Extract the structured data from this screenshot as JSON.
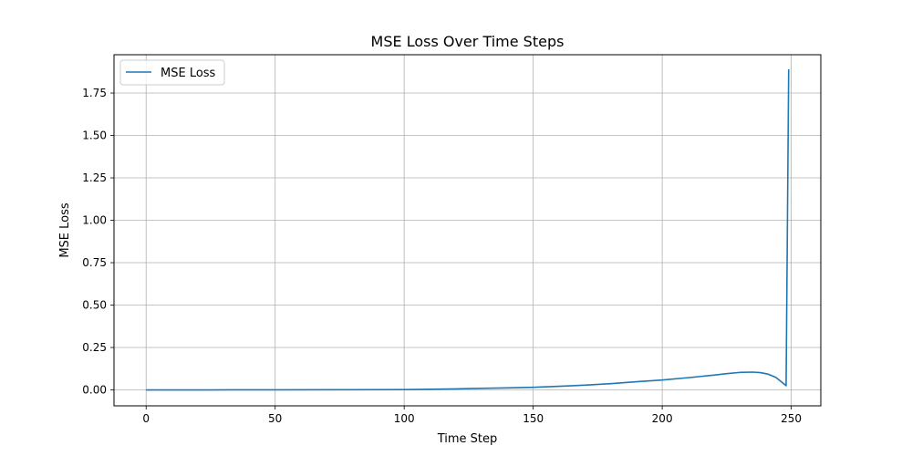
{
  "chart_data": {
    "type": "line",
    "title": "MSE Loss Over Time Steps",
    "xlabel": "Time Step",
    "ylabel": "MSE Loss",
    "xlim": [
      -12.45,
      261.45
    ],
    "ylim": [
      -0.094,
      1.976
    ],
    "xticks": [
      0,
      50,
      100,
      150,
      200,
      250
    ],
    "xtick_labels": [
      "0",
      "50",
      "100",
      "150",
      "200",
      "250"
    ],
    "yticks": [
      0.0,
      0.25,
      0.5,
      0.75,
      1.0,
      1.25,
      1.5,
      1.75
    ],
    "ytick_labels": [
      "0.00",
      "0.25",
      "0.50",
      "0.75",
      "1.00",
      "1.25",
      "1.50",
      "1.75"
    ],
    "grid": true,
    "legend_position": "top-left",
    "series": [
      {
        "name": "MSE Loss",
        "color": "#1f77b4",
        "x": [
          0,
          25,
          50,
          75,
          100,
          110,
          120,
          130,
          140,
          150,
          160,
          170,
          180,
          190,
          200,
          210,
          220,
          225,
          230,
          235,
          238,
          241,
          244,
          246,
          248,
          249
        ],
        "y": [
          0.0,
          0.0,
          0.0005,
          0.001,
          0.002,
          0.004,
          0.006,
          0.009,
          0.012,
          0.015,
          0.021,
          0.028,
          0.037,
          0.048,
          0.058,
          0.072,
          0.087,
          0.096,
          0.103,
          0.105,
          0.102,
          0.093,
          0.074,
          0.05,
          0.025,
          1.89
        ]
      }
    ]
  }
}
